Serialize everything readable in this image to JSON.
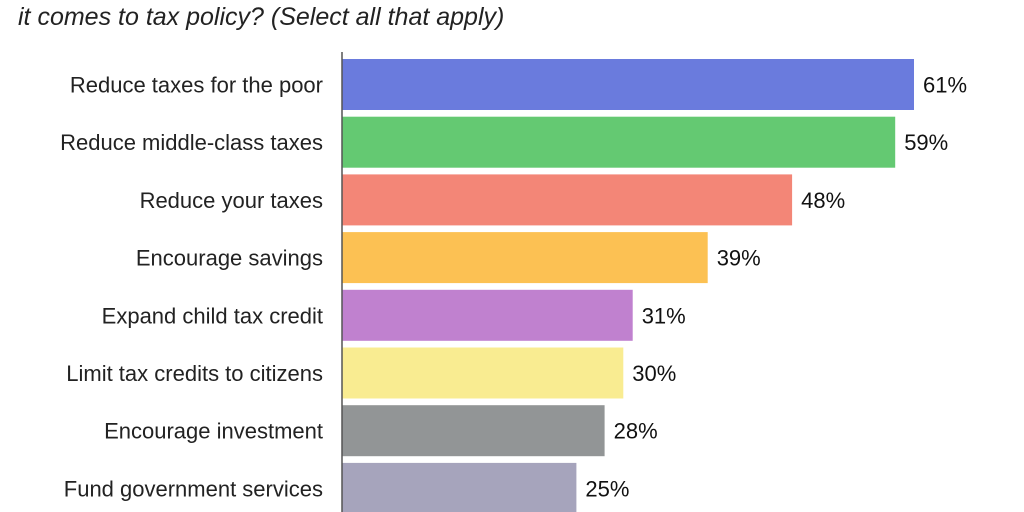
{
  "chart_title": "it comes to tax policy? (Select all that apply)",
  "chart_data": {
    "type": "bar",
    "orientation": "horizontal",
    "title": "it comes to tax policy? (Select all that apply)",
    "categories": [
      "Reduce taxes for the poor",
      "Reduce middle-class taxes",
      "Reduce your taxes",
      "Encourage savings",
      "Expand child tax credit",
      "Limit tax credits to citizens",
      "Encourage investment",
      "Fund government services"
    ],
    "values": [
      61,
      59,
      48,
      39,
      31,
      30,
      28,
      25
    ],
    "value_labels": [
      "61%",
      "59%",
      "48%",
      "39%",
      "31%",
      "30%",
      "28%",
      "25%"
    ],
    "colors": [
      "#6a7bdd",
      "#64c972",
      "#f38677",
      "#fcc153",
      "#c081cf",
      "#f9ec91",
      "#929596",
      "#a6a4bc"
    ],
    "axis_color": "#555555",
    "unit": "%",
    "xlim": [
      0,
      61
    ],
    "grid": false,
    "legend": "none"
  }
}
